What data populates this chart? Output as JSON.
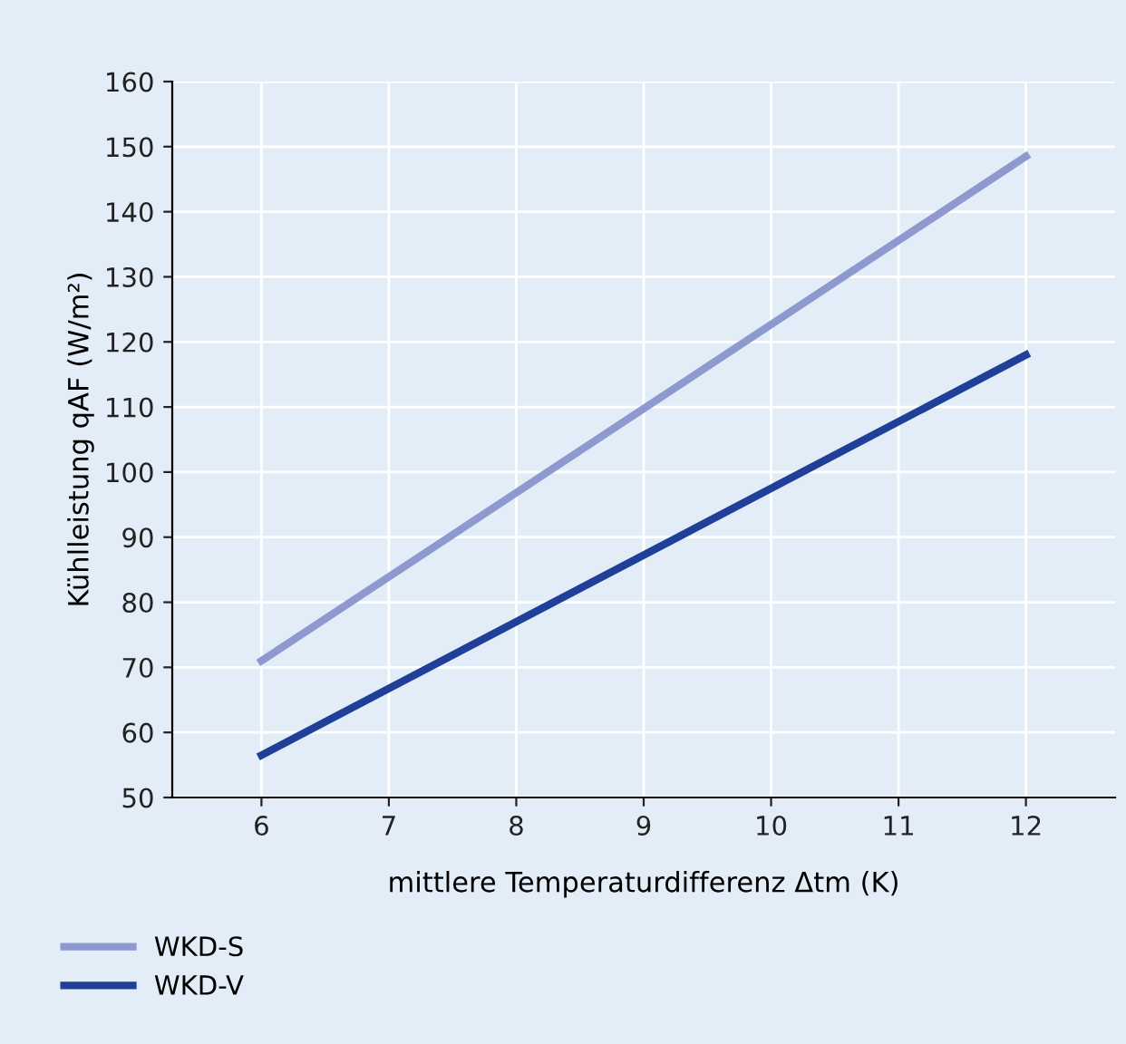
{
  "chart_data": {
    "type": "line",
    "xlabel": "mittlere Temperaturdifferenz Δtm (K)",
    "ylabel": "Kühlleistung qAF (W/m²)",
    "xlim": [
      5.3,
      12.7
    ],
    "xticks": [
      6,
      7,
      8,
      9,
      10,
      11,
      12
    ],
    "ylim": [
      50,
      160
    ],
    "yticks": [
      50,
      60,
      70,
      80,
      90,
      100,
      110,
      120,
      130,
      140,
      150,
      160
    ],
    "grid": true,
    "legend": "bottom",
    "marker": "none",
    "line_style": "solid",
    "x": [
      6,
      12
    ],
    "series": [
      {
        "name": "WKD-S",
        "color": "#8e99d0",
        "values": [
          71,
          148.5
        ]
      },
      {
        "name": "WKD-V",
        "color": "#1f3f98",
        "values": [
          56.5,
          118
        ]
      }
    ]
  }
}
